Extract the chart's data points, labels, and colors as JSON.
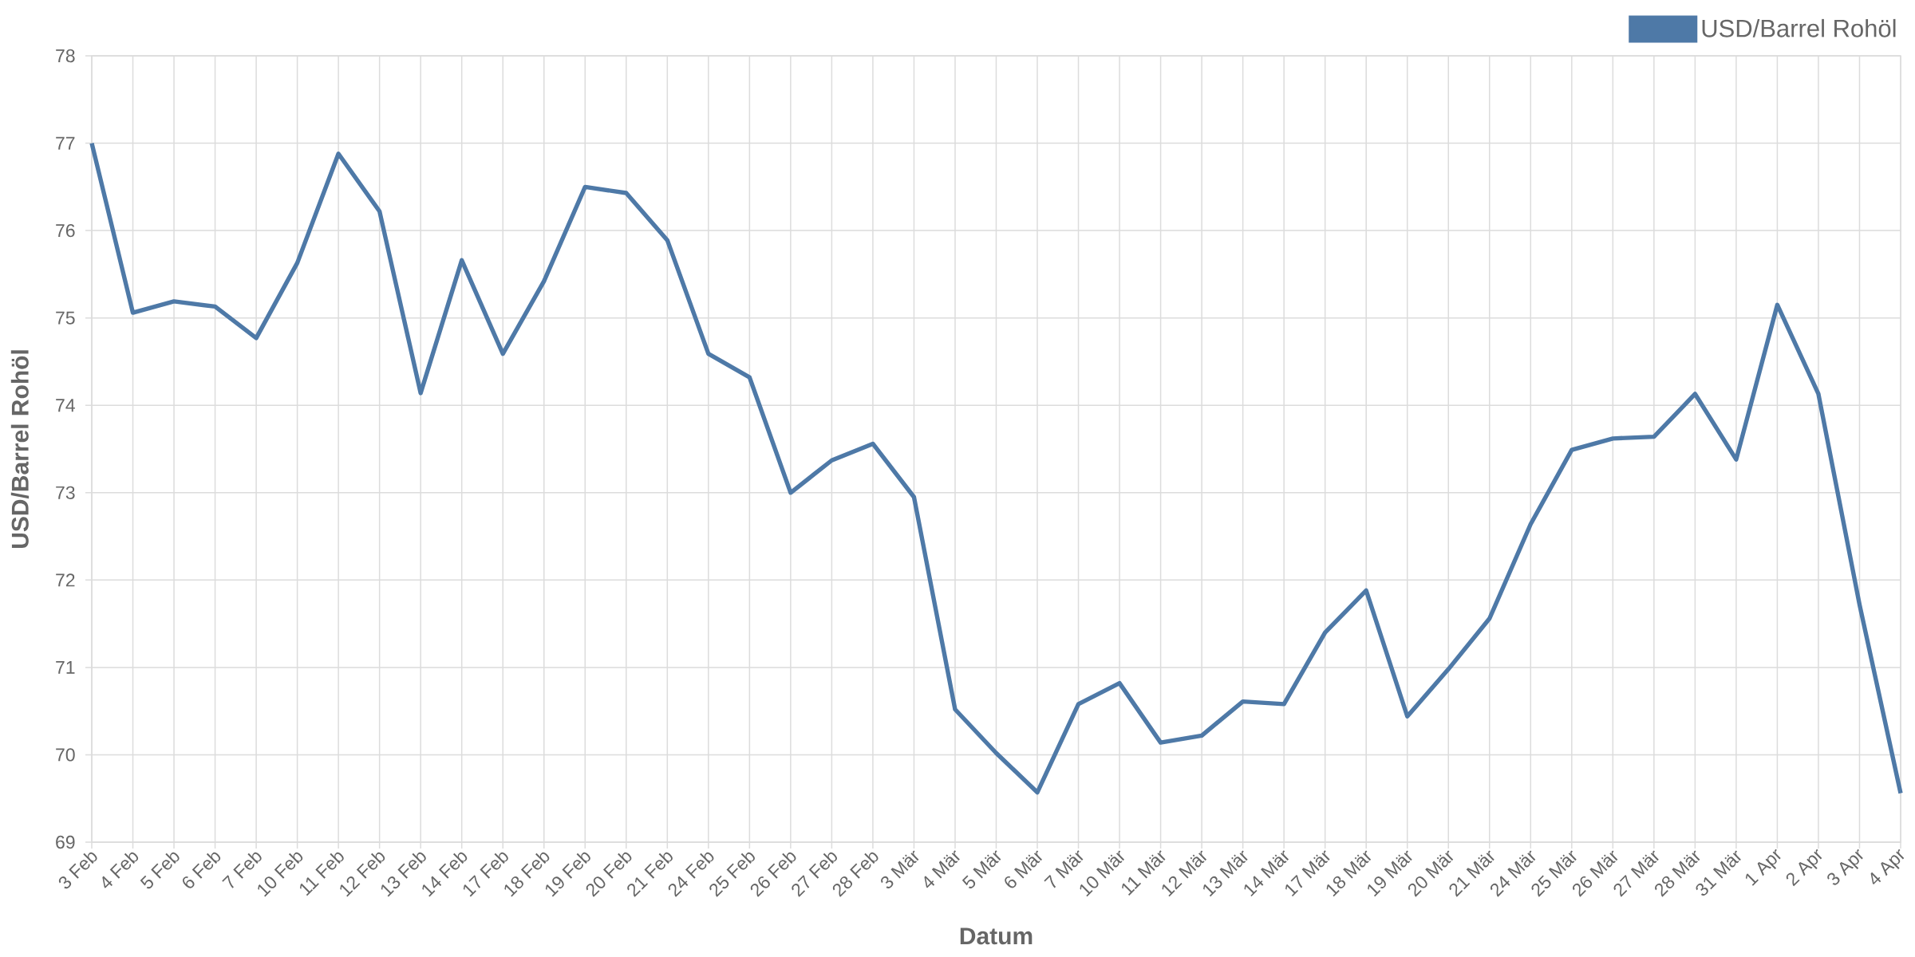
{
  "chart_data": {
    "type": "line",
    "xlabel": "Datum",
    "ylabel": "USD/Barrel Rohöl",
    "categories": [
      "3 Feb",
      "4 Feb",
      "5 Feb",
      "6 Feb",
      "7 Feb",
      "10 Feb",
      "11 Feb",
      "12 Feb",
      "13 Feb",
      "14 Feb",
      "17 Feb",
      "18 Feb",
      "19 Feb",
      "20 Feb",
      "21 Feb",
      "24 Feb",
      "25 Feb",
      "26 Feb",
      "27 Feb",
      "28 Feb",
      "3 Mär",
      "4 Mär",
      "5 Mär",
      "6 Mär",
      "7 Mär",
      "10 Mär",
      "11 Mär",
      "12 Mär",
      "13 Mär",
      "14 Mär",
      "17 Mär",
      "18 Mär",
      "19 Mär",
      "20 Mär",
      "21 Mär",
      "24 Mär",
      "25 Mär",
      "26 Mär",
      "27 Mär",
      "28 Mär",
      "31 Mär",
      "1 Apr",
      "2 Apr",
      "3 Apr",
      "4 Apr"
    ],
    "series": [
      {
        "name": "USD/Barrel Rohöl",
        "color": "#4e79a7",
        "values": [
          77.0,
          75.06,
          75.19,
          75.13,
          74.77,
          75.63,
          76.88,
          76.22,
          74.14,
          75.66,
          74.59,
          75.42,
          76.5,
          76.43,
          75.89,
          74.59,
          74.32,
          73.0,
          73.37,
          73.56,
          72.95,
          70.52,
          70.02,
          69.57,
          70.58,
          70.82,
          70.14,
          70.22,
          70.61,
          70.58,
          71.4,
          71.88,
          70.44,
          70.98,
          71.56,
          72.64,
          73.49,
          73.62,
          73.64,
          74.13,
          73.38,
          75.15,
          74.13,
          71.72,
          69.56
        ]
      }
    ],
    "ylim": [
      69,
      78
    ],
    "yticks": [
      69,
      70,
      71,
      72,
      73,
      74,
      75,
      76,
      77,
      78
    ],
    "grid": true,
    "legend": "top right",
    "marker": "none",
    "line_style": "solid"
  }
}
